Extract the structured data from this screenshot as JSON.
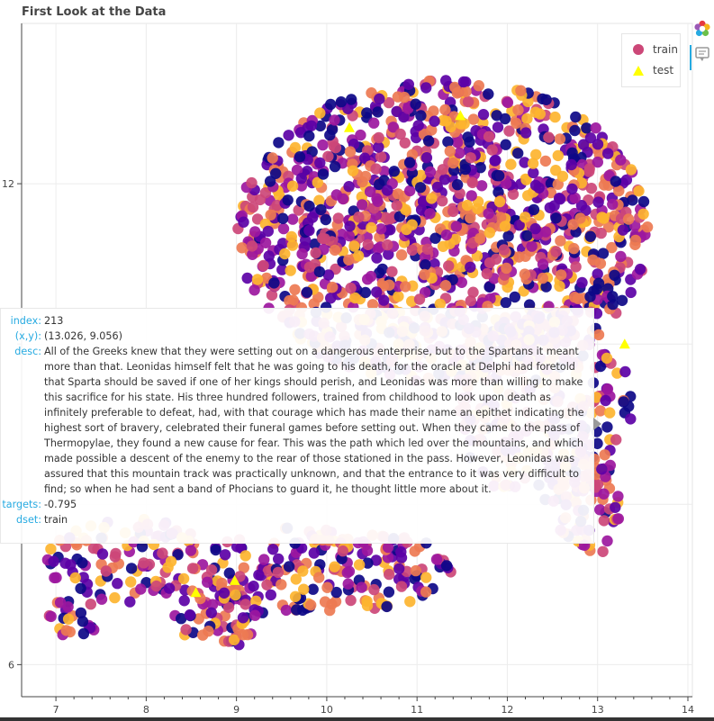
{
  "chart_data": {
    "type": "scatter",
    "title": "First Look at the Data",
    "xlabel": "",
    "ylabel": "",
    "xlim": [
      6.62,
      14.05
    ],
    "ylim": [
      5.6,
      14.0
    ],
    "x_ticks": [
      7,
      8,
      9,
      10,
      11,
      12,
      13,
      14
    ],
    "y_ticks": [
      6,
      12
    ],
    "grid": true,
    "legend_position": "top-right",
    "series": [
      {
        "name": "train",
        "marker": "circle",
        "colormap": [
          "#0d0887",
          "#5c01a6",
          "#9c179e",
          "#cc4778",
          "#ed7953",
          "#fdb42f"
        ],
        "regions": [
          {
            "cx": 11.3,
            "cy": 11.4,
            "rx": 2.3,
            "ry": 1.9,
            "n": 1400
          },
          {
            "cx": 12.4,
            "cy": 9.2,
            "rx": 1.0,
            "ry": 1.2,
            "n": 250
          },
          {
            "cx": 12.9,
            "cy": 8.0,
            "rx": 0.35,
            "ry": 0.7,
            "n": 70
          },
          {
            "cx": 10.0,
            "cy": 7.2,
            "rx": 1.4,
            "ry": 0.55,
            "n": 200
          },
          {
            "cx": 7.8,
            "cy": 7.3,
            "rx": 0.9,
            "ry": 0.55,
            "n": 110
          },
          {
            "cx": 8.8,
            "cy": 6.6,
            "rx": 0.5,
            "ry": 0.4,
            "n": 60
          },
          {
            "cx": 7.2,
            "cy": 6.6,
            "rx": 0.3,
            "ry": 0.25,
            "n": 22
          }
        ]
      },
      {
        "name": "test",
        "marker": "triangle",
        "color": "#ffff00",
        "x": [
          10.25,
          11.48,
          13.3,
          8.55,
          8.98
        ],
        "y": [
          12.7,
          12.85,
          10.0,
          6.9,
          7.05
        ]
      }
    ]
  },
  "tooltip": {
    "index_key": "index:",
    "index_value": "213",
    "xy_key": "(x,y):",
    "xy_value": "(13.026, 9.056)",
    "desc_key": "desc:",
    "desc_value": "All of the Greeks knew that they were setting out on a dangerous enterprise, but to the Spartans it meant more than that. Leonidas himself felt that he was going to his death, for the oracle at Delphi had foretold that Sparta should be saved if one of her kings should perish, and Leonidas was more than willing to make this sacrifice for his state. His three hundred followers, trained from childhood to look upon death as infinitely preferable to defeat, had, with that courage which has made their name an epithet indicating the highest sort of bravery, celebrated their funeral games before setting out. When they came to the pass of Thermopylae, they found a new cause for fear. This was the path which led over the mountains, and which made possible a descent of the enemy to the rear of those stationed in the pass. However, Leonidas was assured that this mountain track was practically unknown, and that the entrance to it was very difficult to find; so when he had sent a band of Phocians to guard it, he thought little more about it.",
    "targets_key": "targets:",
    "targets_value": "-0.795",
    "dset_key": "dset:",
    "dset_value": "train"
  },
  "legend": {
    "train_label": "train",
    "test_label": "test",
    "train_color": "#cc4778",
    "test_color": "#ffff00"
  },
  "toolbar": {
    "logo_icon": "bokeh-logo-icon",
    "hover_icon": "hover-tooltip-icon",
    "accent_color": "#26aae1"
  }
}
